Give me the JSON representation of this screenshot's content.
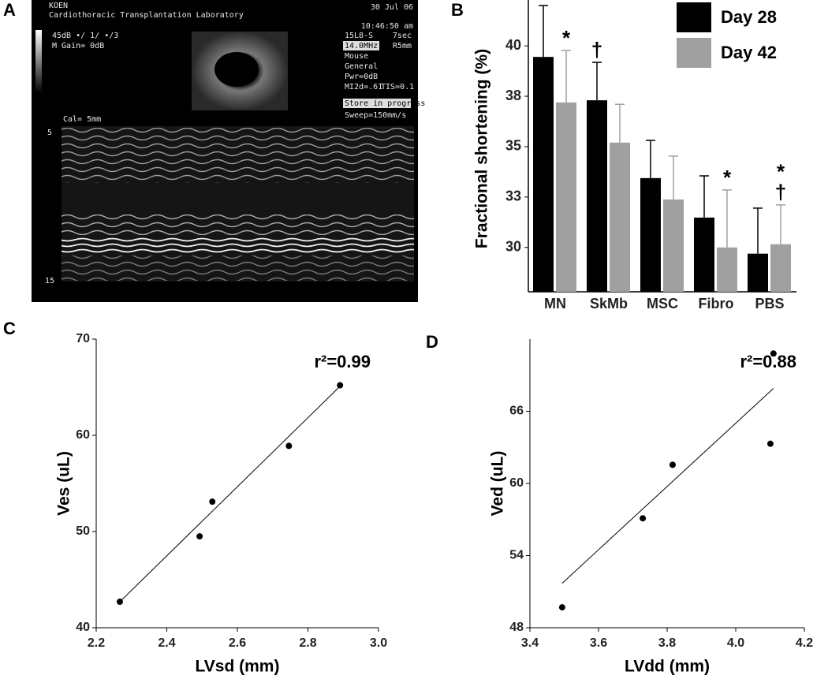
{
  "panel_labels": [
    "A",
    "B",
    "C",
    "D"
  ],
  "ultrasound": {
    "operator": "KOEN",
    "lab": "Cardiothoracic Transplantation Laboratory",
    "date": "30 Jul 06",
    "time": "10:46:50 am",
    "gain_line": "45dB  •/ 1/ •/3",
    "m_gain": "M Gain=  0dB",
    "probe": "15L8-S",
    "duration": "7sec",
    "frequency": "14.0MHz",
    "depth": "R5mm",
    "preset": "Mouse",
    "mode": "General",
    "power": "Pwr=0dB",
    "mi": "MI2d=.61",
    "tis": "TIS=0.1",
    "status": "Store in progress",
    "sweep": "Sweep=150mm/s",
    "cal": "Cal= 5mm",
    "depth_top": "5",
    "depth_bottom": "15"
  },
  "chart_data": [
    {
      "type": "bar",
      "y_label": "Fractional shortening (%)",
      "categories": [
        "MN",
        "SkMb",
        "MSC",
        "Fibro",
        "PBS"
      ],
      "ylim": [
        27.8,
        42
      ],
      "yticks": [
        30,
        {
          "value": 32.5,
          "label": "33"
        },
        35,
        {
          "value": 37.5,
          "label": "38"
        },
        40
      ],
      "legend": "upper right",
      "series": [
        {
          "name": "Day 28",
          "color": "#000000",
          "values": [
            39.45,
            37.3,
            33.44,
            31.48,
            29.69
          ],
          "errors": [
            2.55,
            1.88,
            1.87,
            2.07,
            2.26
          ],
          "annotations": [
            [],
            [
              "†"
            ],
            [],
            [],
            []
          ]
        },
        {
          "name": "Day 42",
          "color": "#a0a0a0",
          "values": [
            37.19,
            35.2,
            32.38,
            30.0,
            30.16
          ],
          "errors": [
            2.58,
            1.9,
            2.15,
            2.85,
            1.95
          ],
          "annotations": [
            [
              "*"
            ],
            [],
            [],
            [
              "*"
            ],
            [
              "*",
              "†"
            ]
          ]
        }
      ]
    },
    {
      "type": "scatter",
      "x_label": "LVsd (mm)",
      "y_label": "Ves (uL)",
      "xlim": [
        2.2,
        3.0
      ],
      "xticks": [
        2.2,
        2.4,
        2.6,
        2.8,
        {
          "value": 3,
          "label": "3.0"
        }
      ],
      "ylim": [
        40,
        70
      ],
      "yticks": [
        40,
        50,
        60,
        70
      ],
      "color": "#000000",
      "x": [
        2.267,
        2.493,
        2.529,
        2.746,
        2.891
      ],
      "y": [
        42.7,
        49.5,
        53.1,
        58.9,
        65.2
      ],
      "fit": {
        "x": [
          2.267,
          2.891
        ],
        "y": [
          42.7,
          65.1
        ]
      },
      "annotation": "r²=0.99"
    },
    {
      "type": "scatter",
      "x_label": "LVdd (mm)",
      "y_label": "Ved (uL)",
      "xlim": [
        3.4,
        4.2
      ],
      "xticks": [
        3.4,
        3.6,
        3.8,
        {
          "value": 4,
          "label": "4.0"
        },
        4.2
      ],
      "ylim": [
        48,
        72
      ],
      "yticks": [
        48,
        54,
        60,
        66
      ],
      "color": "#000000",
      "x": [
        3.494,
        3.729,
        3.816,
        4.101,
        4.11
      ],
      "y": [
        49.7,
        57.1,
        61.55,
        63.3,
        70.8
      ],
      "fit": {
        "x": [
          3.494,
          4.11
        ],
        "y": [
          51.7,
          67.9
        ]
      },
      "annotation": "r²=0.88"
    }
  ]
}
